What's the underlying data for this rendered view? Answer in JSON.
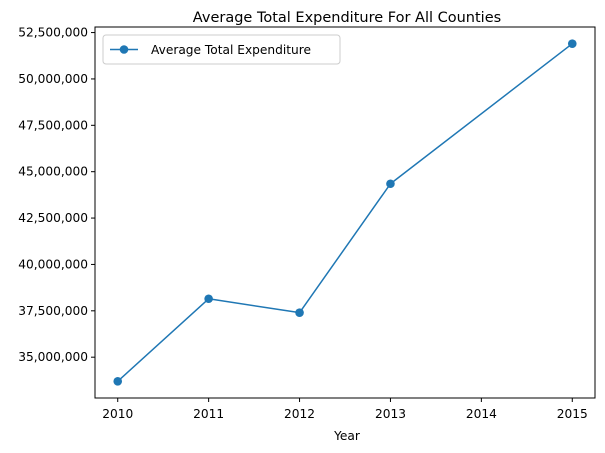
{
  "chart_data": {
    "type": "line",
    "title": "Average Total Expenditure For All Counties",
    "xlabel": "Year",
    "ylabel": "",
    "x": [
      2010,
      2011,
      2012,
      2013,
      2015
    ],
    "series": [
      {
        "name": "Average Total Expenditure",
        "values": [
          33700000,
          38150000,
          37400000,
          44350000,
          51900000
        ],
        "color": "#1f77b4",
        "marker": "circle"
      }
    ],
    "xlim": [
      2009.75,
      2015.25
    ],
    "ylim": [
      32800000,
      52800000
    ],
    "xticks": [
      2010,
      2011,
      2012,
      2013,
      2014,
      2015
    ],
    "xtick_labels": [
      "2010",
      "2011",
      "2012",
      "2013",
      "2014",
      "2015"
    ],
    "yticks": [
      35000000,
      37500000,
      40000000,
      42500000,
      45000000,
      47500000,
      50000000,
      52500000
    ],
    "ytick_labels": [
      "35,000,000",
      "37,500,000",
      "40,000,000",
      "42,500,000",
      "45,000,000",
      "47,500,000",
      "50,000,000",
      "52,500,000"
    ],
    "grid": false,
    "legend_position": "upper-left"
  }
}
